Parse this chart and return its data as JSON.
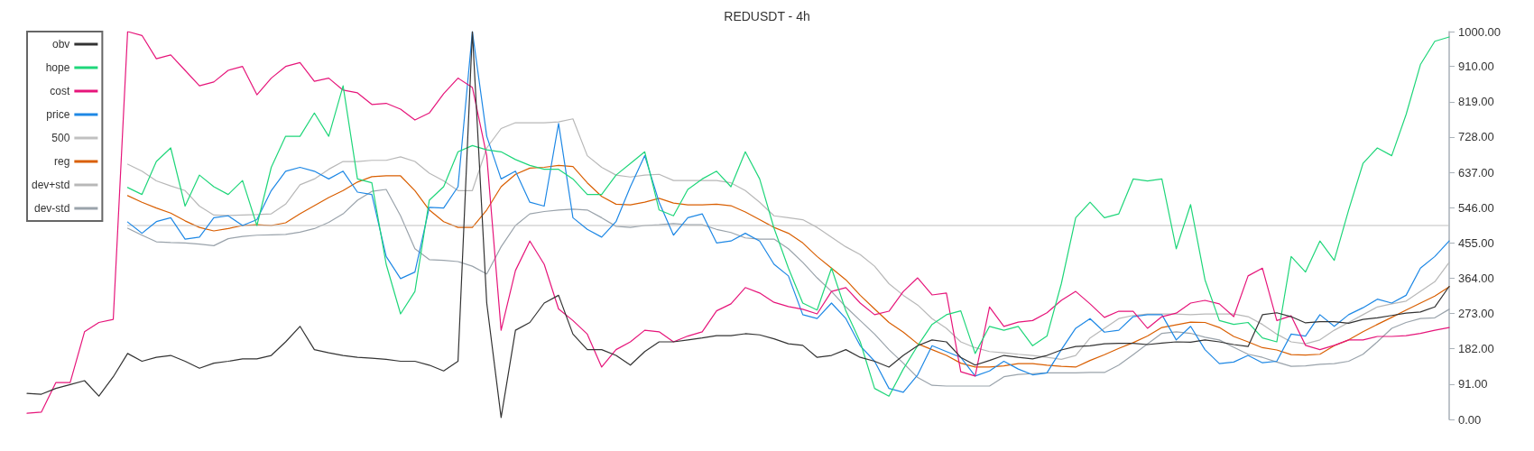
{
  "chart_data": {
    "type": "line",
    "title": "REDUSDT - 4h",
    "categories": [
      null,
      null,
      null,
      null,
      null,
      null,
      null,
      null,
      null,
      null,
      null,
      null,
      null,
      null,
      null,
      null,
      null,
      null,
      null,
      null,
      null,
      null,
      null,
      null,
      null,
      null,
      null,
      null,
      null,
      null,
      null,
      null,
      null,
      null,
      null,
      null,
      null,
      null,
      null,
      null,
      null,
      null,
      null,
      null,
      null,
      null,
      null,
      null,
      null,
      null,
      null,
      null,
      null,
      null,
      null,
      null,
      null,
      null,
      null,
      null,
      null,
      null,
      null,
      null,
      null,
      null,
      null,
      null,
      null,
      null,
      null,
      null,
      null,
      null,
      null,
      null,
      null,
      null,
      null,
      null,
      null,
      null,
      null,
      null,
      null,
      null,
      null,
      null,
      null,
      null,
      null,
      null,
      null,
      null,
      null,
      null,
      null,
      null,
      null,
      null
    ],
    "series": [
      {
        "name": "obv",
        "color": "#333333",
        "values": [
          67,
          65,
          80,
          90,
          100,
          60,
          110,
          170,
          150,
          160,
          165,
          150,
          132,
          145,
          150,
          156,
          156,
          165,
          200,
          240,
          180,
          172,
          165,
          160,
          158,
          155,
          150,
          150,
          140,
          125,
          150,
          1000,
          300,
          5,
          230,
          250,
          300,
          320,
          220,
          180,
          180,
          165,
          140,
          175,
          200,
          200,
          205,
          210,
          216,
          216,
          221,
          218,
          208,
          195,
          191,
          160,
          165,
          180,
          160,
          150,
          135,
          165,
          190,
          205,
          200,
          160,
          140,
          152,
          165,
          160,
          156,
          165,
          179,
          188,
          190,
          195,
          196,
          196,
          193,
          197,
          200,
          199,
          205,
          200,
          193,
          188,
          270,
          275,
          265,
          249,
          252,
          252,
          248,
          258,
          262,
          268,
          274,
          277,
          290,
          343
        ]
      },
      {
        "name": "hope",
        "color": "#1fd67a",
        "values": [
          null,
          null,
          null,
          null,
          null,
          null,
          null,
          598,
          580,
          665,
          700,
          550,
          630,
          600,
          580,
          616,
          500,
          650,
          730,
          730,
          790,
          730,
          860,
          620,
          610,
          400,
          272,
          330,
          565,
          600,
          690,
          706,
          695,
          690,
          670,
          655,
          645,
          645,
          620,
          580,
          580,
          630,
          660,
          690,
          540,
          525,
          593,
          620,
          640,
          600,
          690,
          620,
          493,
          390,
          300,
          282,
          390,
          280,
          200,
          80,
          60,
          130,
          190,
          245,
          270,
          280,
          170,
          240,
          230,
          240,
          190,
          215,
          350,
          520,
          560,
          520,
          530,
          620,
          615,
          620,
          440,
          554,
          360,
          255,
          245,
          250,
          210,
          200,
          420,
          380,
          460,
          410,
          540,
          660,
          700,
          680,
          786,
          915,
          975,
          986
        ]
      },
      {
        "name": "cost",
        "color": "#e6157a",
        "values": [
          16,
          19,
          95,
          95,
          226,
          250,
          258,
          1000,
          990,
          930,
          940,
          900,
          860,
          870,
          900,
          910,
          837,
          880,
          910,
          920,
          872,
          880,
          849,
          842,
          812,
          815,
          800,
          772,
          790,
          840,
          880,
          856,
          680,
          230,
          384,
          460,
          400,
          285,
          255,
          220,
          135,
          180,
          200,
          230,
          226,
          200,
          215,
          226,
          280,
          298,
          340,
          326,
          302,
          291,
          284,
          272,
          330,
          340,
          300,
          270,
          279,
          330,
          365,
          321,
          326,
          123,
          112,
          290,
          240,
          251,
          255,
          275,
          307,
          330,
          298,
          263,
          279,
          279,
          235,
          265,
          274,
          300,
          307,
          298,
          265,
          370,
          390,
          255,
          267,
          191,
          180,
          191,
          205,
          205,
          214,
          214,
          216,
          222,
          230,
          237
        ]
      },
      {
        "name": "price",
        "color": "#1e88e5",
        "values": [
          null,
          null,
          null,
          null,
          null,
          null,
          null,
          509,
          480,
          510,
          520,
          465,
          470,
          520,
          525,
          500,
          515,
          590,
          640,
          650,
          640,
          620,
          640,
          586,
          580,
          420,
          363,
          380,
          547,
          545,
          600,
          1000,
          730,
          620,
          640,
          560,
          550,
          763,
          520,
          490,
          470,
          510,
          600,
          680,
          560,
          475,
          520,
          530,
          455,
          460,
          480,
          460,
          400,
          370,
          270,
          260,
          300,
          260,
          190,
          150,
          80,
          70,
          115,
          190,
          175,
          160,
          112,
          125,
          150,
          130,
          115,
          120,
          180,
          235,
          260,
          225,
          230,
          265,
          270,
          270,
          205,
          240,
          180,
          144,
          148,
          165,
          146,
          150,
          220,
          215,
          270,
          240,
          270,
          288,
          310,
          300,
          320,
          390,
          420,
          460
        ]
      },
      {
        "name": "500",
        "color": "#c0c0c0",
        "values": [
          null,
          null,
          null,
          null,
          null,
          null,
          null,
          500,
          500,
          500,
          500,
          500,
          500,
          500,
          500,
          500,
          500,
          500,
          500,
          500,
          500,
          500,
          500,
          500,
          500,
          500,
          500,
          500,
          500,
          500,
          500,
          500,
          500,
          500,
          500,
          500,
          500,
          500,
          500,
          500,
          500,
          500,
          500,
          500,
          500,
          500,
          500,
          500,
          500,
          500,
          500,
          500,
          500,
          500,
          500,
          500,
          500,
          500,
          500,
          500,
          500,
          500,
          500,
          500,
          500,
          500,
          500,
          500,
          500,
          500,
          500,
          500,
          500,
          500,
          500,
          500,
          500,
          500,
          500,
          500,
          500,
          500,
          500,
          500,
          500,
          500,
          500,
          500,
          500,
          500,
          500,
          500,
          500,
          500,
          500,
          500,
          500,
          500,
          500,
          500
        ]
      },
      {
        "name": "reg",
        "color": "#d95f02",
        "values": [
          null,
          null,
          null,
          null,
          null,
          null,
          null,
          577,
          560,
          545,
          532,
          512,
          495,
          486,
          492,
          500,
          502,
          500,
          507,
          530,
          551,
          572,
          590,
          612,
          626,
          628,
          628,
          590,
          540,
          510,
          495,
          495,
          540,
          600,
          632,
          648,
          650,
          655,
          652,
          610,
          575,
          555,
          553,
          560,
          570,
          558,
          553,
          553,
          555,
          551,
          535,
          515,
          495,
          480,
          455,
          420,
          390,
          360,
          320,
          285,
          250,
          225,
          195,
          180,
          165,
          145,
          135,
          135,
          138,
          144,
          144,
          140,
          137,
          135,
          152,
          167,
          183,
          198,
          215,
          237,
          244,
          251,
          250,
          237,
          214,
          200,
          185,
          179,
          167,
          166,
          168,
          190,
          205,
          226,
          245,
          263,
          282,
          300,
          318,
          342
        ]
      },
      {
        "name": "dev+std",
        "color": "#b8b8b8",
        "values": [
          null,
          null,
          null,
          null,
          null,
          null,
          null,
          658,
          640,
          615,
          602,
          590,
          550,
          527,
          526,
          527,
          528,
          530,
          555,
          605,
          620,
          645,
          665,
          665,
          668,
          668,
          677,
          665,
          635,
          615,
          590,
          590,
          700,
          750,
          765,
          765,
          765,
          767,
          775,
          680,
          650,
          630,
          625,
          630,
          632,
          616,
          616,
          616,
          616,
          610,
          590,
          560,
          525,
          520,
          515,
          495,
          470,
          445,
          425,
          395,
          350,
          320,
          295,
          260,
          235,
          200,
          185,
          175,
          172,
          168,
          165,
          160,
          155,
          165,
          210,
          235,
          260,
          268,
          272,
          272,
          272,
          270,
          272,
          272,
          272,
          265,
          245,
          220,
          200,
          195,
          205,
          230,
          250,
          270,
          290,
          298,
          305,
          330,
          355,
          405
        ]
      },
      {
        "name": "dev-std",
        "color": "#9aa3ab",
        "values": [
          null,
          null,
          null,
          null,
          null,
          null,
          null,
          493,
          475,
          458,
          456,
          455,
          452,
          448,
          466,
          472,
          475,
          476,
          477,
          483,
          492,
          508,
          530,
          565,
          588,
          593,
          525,
          440,
          412,
          410,
          407,
          395,
          375,
          445,
          500,
          530,
          536,
          540,
          542,
          540,
          520,
          498,
          495,
          500,
          502,
          505,
          502,
          502,
          490,
          482,
          468,
          465,
          465,
          440,
          405,
          365,
          330,
          290,
          255,
          220,
          180,
          145,
          108,
          88,
          86,
          86,
          86,
          86,
          110,
          116,
          118,
          120,
          120,
          120,
          121,
          121,
          140,
          167,
          195,
          222,
          226,
          222,
          212,
          205,
          186,
          168,
          160,
          148,
          137,
          138,
          142,
          144,
          150,
          168,
          200,
          235,
          250,
          260,
          262,
          284
        ]
      }
    ],
    "ylim": [
      0,
      1000
    ],
    "yticks": [
      {
        "value": 0,
        "label": "0.00"
      },
      {
        "value": 91,
        "label": "91.00"
      },
      {
        "value": 182,
        "label": "182.00"
      },
      {
        "value": 273,
        "label": "273.00"
      },
      {
        "value": 364,
        "label": "364.00"
      },
      {
        "value": 455,
        "label": "455.00"
      },
      {
        "value": 546,
        "label": "546.00"
      },
      {
        "value": 637,
        "label": "637.00"
      },
      {
        "value": 728,
        "label": "728.00"
      },
      {
        "value": 819,
        "label": "819.00"
      },
      {
        "value": 910,
        "label": "910.00"
      },
      {
        "value": 1000,
        "label": "1000.00"
      }
    ],
    "legend": "top left",
    "marker": "none",
    "tick_labels": "y"
  }
}
